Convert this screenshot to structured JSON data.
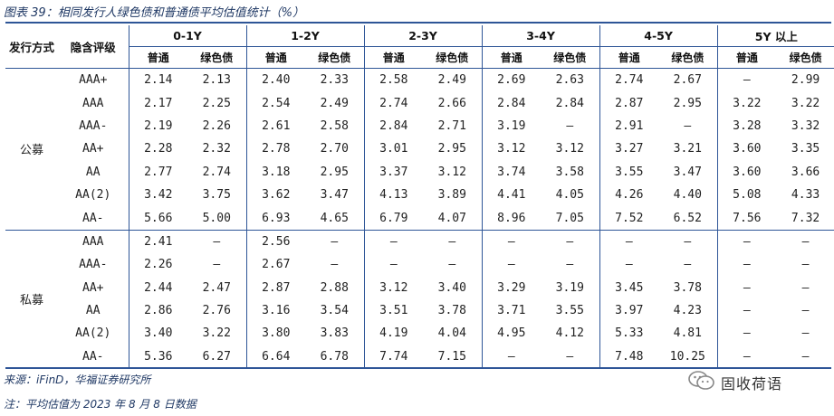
{
  "title": "图表 39：相同发行人绿色债和普通债平均估值统计（%）",
  "headers": {
    "issue": "发行方式",
    "rating": "隐含评级",
    "tenors": [
      "0-1Y",
      "1-2Y",
      "2-3Y",
      "3-4Y",
      "4-5Y",
      "5Y 以上"
    ],
    "sub": [
      "普通",
      "绿色债"
    ]
  },
  "groups": [
    {
      "name": "公募",
      "rows": [
        {
          "rating": "AAA+",
          "cells": [
            "2.14",
            "2.13",
            "2.40",
            "2.33",
            "2.58",
            "2.49",
            "2.69",
            "2.63",
            "2.74",
            "2.67",
            "–",
            "2.99"
          ],
          "red": []
        },
        {
          "rating": "AAA",
          "cells": [
            "2.17",
            "2.25",
            "2.54",
            "2.49",
            "2.74",
            "2.66",
            "2.84",
            "2.84",
            "2.87",
            "2.95",
            "3.22",
            "3.22"
          ],
          "red": [
            1
          ]
        },
        {
          "rating": "AAA-",
          "cells": [
            "2.19",
            "2.26",
            "2.61",
            "2.58",
            "2.84",
            "2.71",
            "3.19",
            "–",
            "2.91",
            "–",
            "3.28",
            "3.32"
          ],
          "red": [
            1,
            11
          ]
        },
        {
          "rating": "AA+",
          "cells": [
            "2.28",
            "2.32",
            "2.78",
            "2.70",
            "3.01",
            "2.95",
            "3.12",
            "3.12",
            "3.27",
            "3.21",
            "3.60",
            "3.35"
          ],
          "red": [
            1
          ]
        },
        {
          "rating": "AA",
          "cells": [
            "2.77",
            "2.74",
            "3.18",
            "2.95",
            "3.37",
            "3.12",
            "3.74",
            "3.58",
            "3.55",
            "3.47",
            "3.60",
            "3.66"
          ],
          "red": [
            11
          ]
        },
        {
          "rating": "AA(2)",
          "cells": [
            "3.42",
            "3.75",
            "3.62",
            "3.47",
            "4.13",
            "3.89",
            "4.41",
            "4.05",
            "4.26",
            "4.40",
            "5.08",
            "4.33"
          ],
          "red": [
            1,
            9
          ]
        },
        {
          "rating": "AA-",
          "cells": [
            "5.66",
            "5.00",
            "6.93",
            "4.65",
            "6.79",
            "4.07",
            "8.96",
            "7.05",
            "7.52",
            "6.52",
            "7.56",
            "7.32"
          ],
          "red": []
        }
      ]
    },
    {
      "name": "私募",
      "rows": [
        {
          "rating": "AAA",
          "cells": [
            "2.41",
            "–",
            "2.56",
            "–",
            "–",
            "–",
            "–",
            "–",
            "–",
            "–",
            "–",
            "–"
          ],
          "red": []
        },
        {
          "rating": "AAA-",
          "cells": [
            "2.26",
            "–",
            "2.67",
            "–",
            "–",
            "–",
            "–",
            "–",
            "–",
            "–",
            "–",
            "–"
          ],
          "red": []
        },
        {
          "rating": "AA+",
          "cells": [
            "2.44",
            "2.47",
            "2.87",
            "2.88",
            "3.12",
            "3.40",
            "3.29",
            "3.19",
            "3.45",
            "3.78",
            "–",
            "–"
          ],
          "red": [
            1,
            3,
            5,
            9
          ]
        },
        {
          "rating": "AA",
          "cells": [
            "2.86",
            "2.76",
            "3.16",
            "3.54",
            "3.51",
            "3.78",
            "3.71",
            "3.55",
            "3.97",
            "4.23",
            "–",
            "–"
          ],
          "red": [
            3,
            5,
            9
          ]
        },
        {
          "rating": "AA(2)",
          "cells": [
            "3.40",
            "3.22",
            "3.80",
            "3.83",
            "4.19",
            "4.04",
            "4.95",
            "4.12",
            "5.33",
            "4.81",
            "–",
            "–"
          ],
          "red": [
            3
          ]
        },
        {
          "rating": "AA-",
          "cells": [
            "5.36",
            "6.27",
            "6.64",
            "6.78",
            "7.74",
            "7.15",
            "–",
            "–",
            "7.48",
            "10.25",
            "–",
            "–"
          ],
          "red": [
            1,
            3,
            9
          ]
        }
      ]
    }
  ],
  "source": "来源：iFinD，华福证券研究所",
  "note": "注：平均估值为 2023 年 8 月 8 日数据",
  "brand": {
    "name": "固收荷语",
    "icon": "wechat-icon"
  },
  "colors": {
    "accent": "#2e5597",
    "title": "#1f3864",
    "highlight": "#e0262b"
  }
}
